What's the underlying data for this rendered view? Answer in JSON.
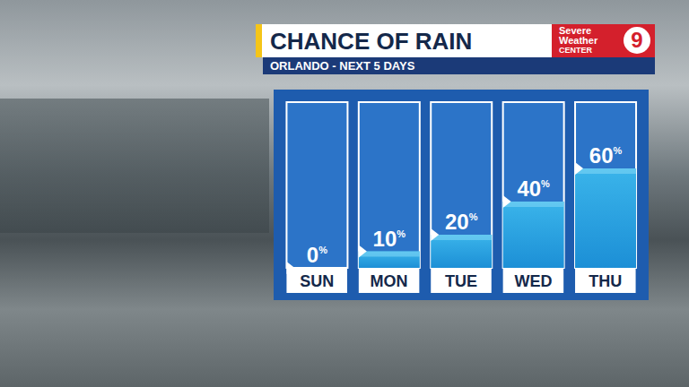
{
  "chart_data": {
    "type": "bar",
    "title": "CHANCE OF RAIN",
    "subtitle": "ORLANDO - NEXT 5 DAYS",
    "annotations": [
      "Severe",
      "Weather",
      "CENTER",
      "9"
    ],
    "categories": [
      "SUN",
      "MON",
      "TUE",
      "WED",
      "THU"
    ],
    "values": [
      0,
      10,
      20,
      40,
      60
    ],
    "value_labels": [
      "0%",
      "10%",
      "20%",
      "40%",
      "60%"
    ],
    "data_labels": true,
    "ylim": [
      0,
      100
    ],
    "tick_labels": "x",
    "color": "#3ab4ea",
    "grid": false
  }
}
